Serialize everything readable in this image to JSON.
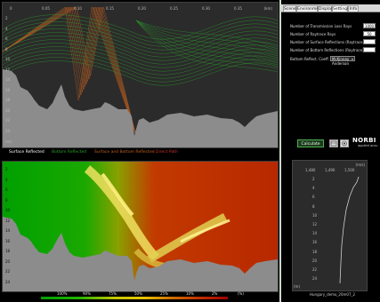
{
  "tabs": [
    {
      "label": "Scene"
    },
    {
      "label": "Environment"
    },
    {
      "label": "Display"
    },
    {
      "label": "Settings"
    },
    {
      "label": "Info"
    }
  ],
  "active_tab": "Settings",
  "settings": [
    {
      "label": "Number of Transmission Loss Rays",
      "value": "1000",
      "kind": "input"
    },
    {
      "label": "Number of Raytrace Rays",
      "value": "50",
      "kind": "input"
    },
    {
      "label": "Number of Surface Reflections (Raytrace)",
      "value": "",
      "kind": "input"
    },
    {
      "label": "Number of Bottom Reflections (Raytrace)",
      "value": "",
      "kind": "input"
    },
    {
      "label": "Bottom Reflect. Coeff.",
      "value": "McKinney Anderson",
      "kind": "select"
    }
  ],
  "calculate_label": "Calculate",
  "logo": {
    "text": "NORBI",
    "subtitle": "applied acou"
  },
  "raypath_plot": {
    "range_unit": "(km)",
    "depth_unit": "(m)",
    "x_ticks": [
      "0",
      "0.05",
      "0.10",
      "0.15",
      "0.20",
      "0.25",
      "0.30",
      "0.35"
    ],
    "y_ticks": [
      "2",
      "4",
      "6",
      "8",
      "10",
      "12",
      "14",
      "16",
      "18",
      "20",
      "22",
      "24"
    ]
  },
  "legend": [
    {
      "label": "Surface Reflected",
      "color": "#ffffff"
    },
    {
      "label": "Bottom Reflected",
      "color": "#2aa02a"
    },
    {
      "label": "Surface and Bottom Reflected",
      "color": "#c06020"
    },
    {
      "label": "Direct Path",
      "color": "#d03030"
    }
  ],
  "loss_plot": {
    "y_ticks": [
      "2",
      "4",
      "6",
      "8",
      "10",
      "12",
      "14",
      "16",
      "18",
      "20",
      "22",
      "24"
    ]
  },
  "colorbar_labels": [
    "100%",
    "90%",
    "75%",
    "50%",
    "25%",
    "10%",
    "2%",
    "(%)"
  ],
  "profile_plot": {
    "x_ticks": [
      "1,480",
      "1,490",
      "1,500"
    ],
    "x_unit": "(m/s)",
    "y_ticks": [
      "2",
      "4",
      "6",
      "8",
      "10",
      "12",
      "14",
      "16",
      "18",
      "20",
      "22",
      "24"
    ],
    "y_unit": "(m)",
    "caption": "Hungary_demo_20m07_2"
  },
  "colors": {
    "surface_ray": "#ffffff",
    "bottom_ray": "#2aa02a",
    "surface_bottom_ray": "#c06020",
    "seabed": "#8c8c8c"
  }
}
